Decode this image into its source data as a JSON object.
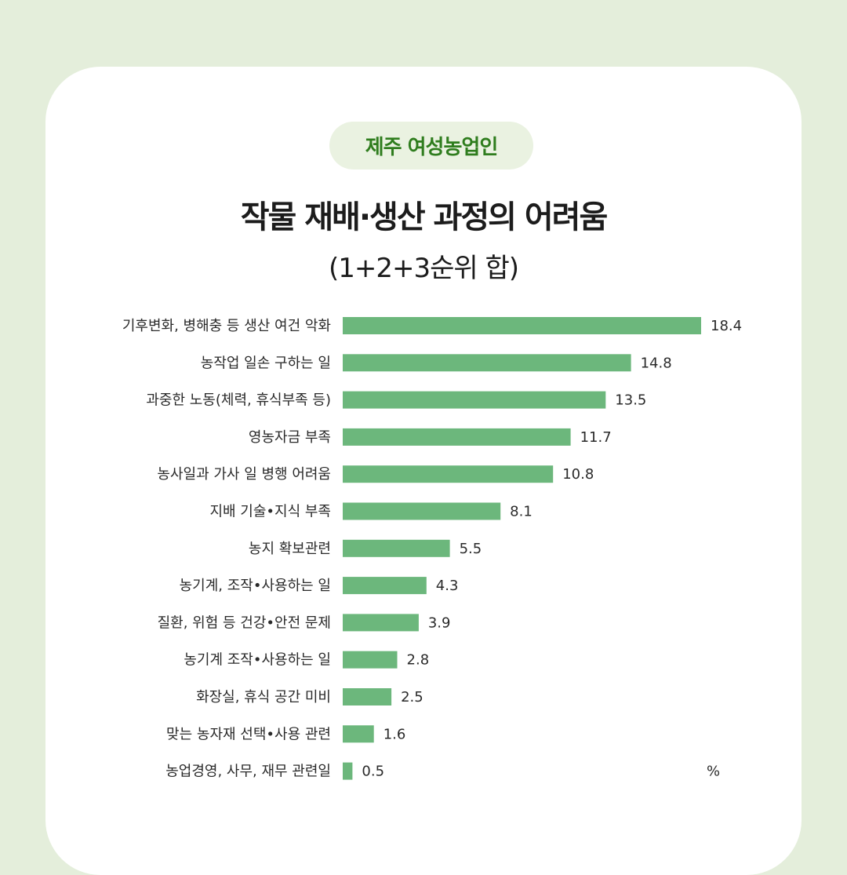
{
  "header": {
    "badge": "제주 여성농업인",
    "title": "작물 재배·생산 과정의 어려움",
    "subtitle": "(1+2+3순위 합)"
  },
  "colors": {
    "background": "#e4eedb",
    "card": "#ffffff",
    "badge_bg": "#eaf2e1",
    "badge_text": "#2f7d1e",
    "bar": "#6cb77c"
  },
  "chart_data": {
    "type": "bar",
    "orientation": "horizontal",
    "unit": "%",
    "categories": [
      "기후변화, 병해충 등 생산 여건 악화",
      "농작업 일손 구하는 일",
      "과중한 노동(체력, 휴식부족 등)",
      "영농자금 부족",
      "농사일과 가사 일 병행 어려움",
      "지배 기술•지식 부족",
      "농지 확보관련",
      "농기계, 조작•사용하는 일",
      "질환, 위험 등 건강•안전 문제",
      "농기계 조작•사용하는 일",
      "화장실, 휴식 공간 미비",
      "맞는 농자재 선택•사용 관련",
      "농업경영, 사무, 재무 관련일"
    ],
    "values": [
      18.4,
      14.8,
      13.5,
      11.7,
      10.8,
      8.1,
      5.5,
      4.3,
      3.9,
      2.8,
      2.5,
      1.6,
      0.5
    ],
    "value_labels": [
      "18.4",
      "14.8",
      "13.5",
      "11.7",
      "10.8",
      "8.1",
      "5.5",
      "4.3",
      "3.9",
      "2.8",
      "2.5",
      "1.6",
      "0.5"
    ],
    "xlim": [
      0,
      18.4
    ],
    "grid": false,
    "legend": "none"
  }
}
